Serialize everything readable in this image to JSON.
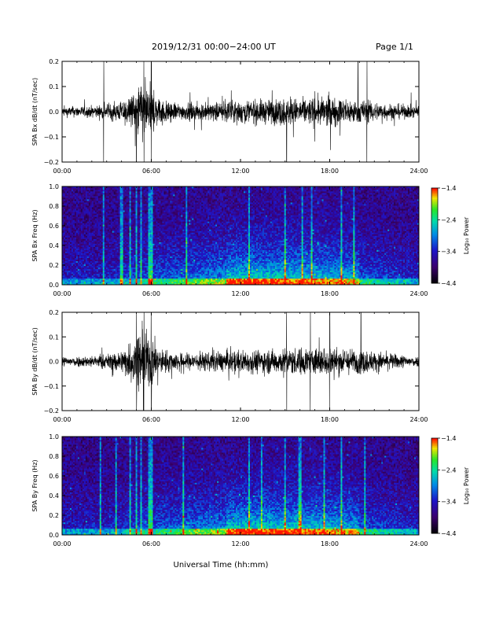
{
  "header": {
    "date_range": "2019/12/31  00:00−24:00 UT",
    "page": "Page 1/1"
  },
  "chart_data": [
    {
      "type": "line",
      "ylabel": "SPA Bx dB/dt (nT/sec)",
      "ylim": [
        -0.2,
        0.2
      ],
      "yticks": [
        "0.2",
        "0.1",
        "0.0",
        "−0.1",
        "−0.2"
      ],
      "ytick_values": [
        0.2,
        0.1,
        0.0,
        -0.1,
        -0.2
      ],
      "xticks": [
        "00:00",
        "06:00",
        "12:00",
        "18:00",
        "24:00"
      ],
      "xlim_hours": [
        0,
        24
      ],
      "envelope": {
        "hours": [
          0,
          2,
          3,
          4,
          4.8,
          5.3,
          6.0,
          6.5,
          8,
          10,
          12,
          14,
          15,
          16,
          18,
          19,
          20,
          22,
          24
        ],
        "amplitude": [
          0.03,
          0.035,
          0.045,
          0.06,
          0.11,
          0.2,
          0.15,
          0.08,
          0.05,
          0.055,
          0.07,
          0.075,
          0.085,
          0.08,
          0.09,
          0.08,
          0.07,
          0.05,
          0.035
        ]
      },
      "spikes_hours": [
        2.8,
        5.0,
        5.5,
        6.0,
        15.1,
        19.9,
        20.5
      ],
      "color": "#000000"
    },
    {
      "type": "heatmap",
      "ylabel": "SPA Bx Freq (Hz)",
      "ylim": [
        0,
        1.0
      ],
      "yticks": [
        "1.0",
        "0.8",
        "0.6",
        "0.4",
        "0.2",
        "0.0"
      ],
      "xticks": [
        "00:00",
        "06:00",
        "12:00",
        "18:00",
        "24:00"
      ],
      "colorbar": {
        "label": "Log₁₀ Power",
        "ticks": [
          "−1.4",
          "−2.4",
          "−3.4",
          "−4.4"
        ],
        "range": [
          -4.4,
          -1.4
        ]
      },
      "bright_columns_hours": [
        2.8,
        4.0,
        4.6,
        5.0,
        5.3,
        5.8,
        6.0,
        8.4,
        12.6,
        15.0,
        16.2,
        16.8,
        18.8,
        19.6
      ],
      "base_power": -4.1
    },
    {
      "type": "line",
      "ylabel": "SPA By dB/dt (nT/sec)",
      "ylim": [
        -0.2,
        0.2
      ],
      "yticks": [
        "0.2",
        "0.1",
        "0.0",
        "−0.1",
        "−0.2"
      ],
      "ytick_values": [
        0.2,
        0.1,
        0.0,
        -0.1,
        -0.2
      ],
      "xticks": [
        "00:00",
        "06:00",
        "12:00",
        "18:00",
        "24:00"
      ],
      "xlim_hours": [
        0,
        24
      ],
      "envelope": {
        "hours": [
          0,
          2,
          3,
          4,
          4.8,
          5.3,
          6.0,
          6.5,
          8,
          10,
          12,
          14,
          15,
          16,
          18,
          19,
          20,
          22,
          24
        ],
        "amplitude": [
          0.03,
          0.035,
          0.045,
          0.07,
          0.14,
          0.2,
          0.15,
          0.08,
          0.05,
          0.06,
          0.07,
          0.075,
          0.08,
          0.085,
          0.09,
          0.08,
          0.075,
          0.05,
          0.03
        ]
      },
      "spikes_hours": [
        5.0,
        5.5,
        6.0,
        15.1,
        16.7,
        18.0,
        20.1
      ],
      "color": "#000000"
    },
    {
      "type": "heatmap",
      "ylabel": "SPA By Freq (Hz)",
      "ylim": [
        0,
        1.0
      ],
      "yticks": [
        "1.0",
        "0.8",
        "0.6",
        "0.4",
        "0.2",
        "0.0"
      ],
      "xticks": [
        "00:00",
        "06:00",
        "12:00",
        "18:00",
        "24:00"
      ],
      "colorbar": {
        "label": "Log₁₀ Power",
        "ticks": [
          "−1.4",
          "−2.4",
          "−3.4",
          "−4.4"
        ],
        "range": [
          -4.4,
          -1.4
        ]
      },
      "bright_columns_hours": [
        2.6,
        3.6,
        4.6,
        5.0,
        5.3,
        5.8,
        6.0,
        8.2,
        12.6,
        13.4,
        15.0,
        16.0,
        17.6,
        18.8,
        20.4
      ],
      "base_power": -4.05
    }
  ],
  "xaxis_title": "Universal Time (hh:mm)"
}
